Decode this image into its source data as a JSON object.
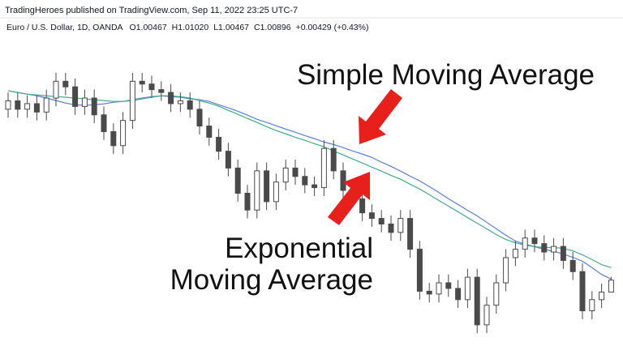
{
  "header": {
    "published": "TradingHeroes published on TradingView.com, Sep 11, 2022 23:25 UTC-7",
    "symbol": "Euro / U.S. Dollar, 1D, OANDA",
    "legend": [
      "O1.00467",
      "H1.01020",
      "L1.00467",
      "C1.00896",
      "+0.00429 (+0.43%)"
    ]
  },
  "annotations": [
    {
      "lines": [
        "Simple Moving Average"
      ]
    },
    {
      "lines": [
        "Exponential",
        "Moving Average"
      ]
    }
  ],
  "chart_data": {
    "type": "candlestick",
    "open": [
      1.07,
      1.073,
      1.07,
      1.072,
      1.069,
      1.074,
      1.08,
      1.078,
      1.071,
      1.074,
      1.068,
      1.062,
      1.057,
      1.066,
      1.08,
      1.079,
      1.077,
      1.076,
      1.072,
      1.073,
      1.07,
      1.064,
      1.06,
      1.055,
      1.049,
      1.04,
      1.034,
      1.048,
      1.037,
      1.044,
      1.049,
      1.046,
      1.043,
      1.042,
      1.056,
      1.048,
      1.041,
      1.038,
      1.033,
      1.031,
      1.029,
      1.026,
      1.031,
      1.02,
      1.005,
      1.004,
      1.008,
      1.006,
      1.002,
      1.01,
      0.993,
      1.0,
      1.008,
      1.017,
      1.02,
      1.024,
      1.022,
      1.019,
      1.021,
      1.016,
      1.012,
      0.998,
      1.002,
      1.00467
    ],
    "high": [
      1.076,
      1.076,
      1.075,
      1.075,
      1.077,
      1.083,
      1.083,
      1.081,
      1.077,
      1.077,
      1.071,
      1.065,
      1.069,
      1.083,
      1.083,
      1.082,
      1.08,
      1.079,
      1.076,
      1.076,
      1.073,
      1.067,
      1.063,
      1.058,
      1.052,
      1.043,
      1.051,
      1.051,
      1.047,
      1.052,
      1.052,
      1.049,
      1.046,
      1.059,
      1.059,
      1.051,
      1.044,
      1.041,
      1.036,
      1.034,
      1.032,
      1.034,
      1.034,
      1.023,
      1.008,
      1.011,
      1.011,
      1.009,
      1.013,
      1.013,
      1.003,
      1.011,
      1.02,
      1.023,
      1.027,
      1.027,
      1.025,
      1.024,
      1.024,
      1.019,
      1.015,
      1.005,
      1.0077,
      1.0102
    ],
    "low": [
      1.067,
      1.067,
      1.067,
      1.066,
      1.066,
      1.071,
      1.075,
      1.068,
      1.068,
      1.065,
      1.059,
      1.054,
      1.054,
      1.063,
      1.076,
      1.074,
      1.073,
      1.069,
      1.069,
      1.067,
      1.061,
      1.057,
      1.052,
      1.046,
      1.037,
      1.031,
      1.031,
      1.034,
      1.034,
      1.041,
      1.043,
      1.04,
      1.039,
      1.039,
      1.045,
      1.038,
      1.035,
      1.03,
      1.028,
      1.026,
      1.023,
      1.023,
      1.017,
      1.002,
      1.001,
      1.001,
      1.003,
      0.999,
      0.999,
      0.99,
      0.99,
      0.997,
      1.005,
      1.014,
      1.017,
      1.019,
      1.016,
      1.016,
      1.013,
      1.009,
      0.995,
      0.995,
      0.999,
      1.00467
    ],
    "close": [
      1.073,
      1.07,
      1.072,
      1.069,
      1.074,
      1.08,
      1.078,
      1.071,
      1.074,
      1.068,
      1.062,
      1.057,
      1.066,
      1.08,
      1.079,
      1.077,
      1.076,
      1.072,
      1.073,
      1.07,
      1.064,
      1.06,
      1.055,
      1.049,
      1.04,
      1.034,
      1.048,
      1.037,
      1.044,
      1.049,
      1.046,
      1.043,
      1.042,
      1.056,
      1.048,
      1.041,
      1.038,
      1.033,
      1.031,
      1.029,
      1.026,
      1.031,
      1.02,
      1.005,
      1.004,
      1.008,
      1.006,
      1.002,
      1.01,
      0.993,
      1.0,
      1.008,
      1.017,
      1.02,
      1.024,
      1.022,
      1.019,
      1.021,
      1.016,
      1.012,
      0.998,
      1.002,
      1.0047,
      1.00896
    ],
    "up_color": "#ffffff",
    "down_color": "#4a4a4a",
    "wick_color": "#4a4a4a",
    "overlays": [
      {
        "color": "#5b7fe6",
        "values": [
          1.0766,
          1.076,
          1.0754,
          1.0748,
          1.074,
          1.0731,
          1.0722,
          1.0716,
          1.0714,
          1.0716,
          1.0719,
          1.0725,
          1.0728,
          1.0734,
          1.074,
          1.0745,
          1.0748,
          1.0745,
          1.0743,
          1.0737,
          1.0734,
          1.0728,
          1.0716,
          1.0705,
          1.0693,
          1.0679,
          1.0664,
          1.0653,
          1.0641,
          1.0629,
          1.0618,
          1.0606,
          1.0595,
          1.0583,
          1.0574,
          1.0563,
          1.0551,
          1.054,
          1.0528,
          1.0511,
          1.0496,
          1.0479,
          1.0461,
          1.0444,
          1.0424,
          1.0403,
          1.038,
          1.036,
          1.0339,
          1.0319,
          1.0296,
          1.0273,
          1.025,
          1.0229,
          1.0218,
          1.0209,
          1.02,
          1.0192,
          1.0183,
          1.0171,
          1.0157,
          1.0134,
          1.011,
          1.0093
        ]
      },
      {
        "color": "#3fae8a",
        "values": [
          1.0766,
          1.076,
          1.0754,
          1.0751,
          1.0748,
          1.0745,
          1.0743,
          1.074,
          1.0737,
          1.0734,
          1.0731,
          1.0728,
          1.0728,
          1.0731,
          1.0737,
          1.0743,
          1.0748,
          1.0748,
          1.0745,
          1.074,
          1.0731,
          1.0722,
          1.0711,
          1.0696,
          1.0682,
          1.0667,
          1.0653,
          1.0638,
          1.0624,
          1.0612,
          1.06,
          1.0589,
          1.0577,
          1.0566,
          1.0551,
          1.0537,
          1.0522,
          1.0508,
          1.0493,
          1.0479,
          1.0464,
          1.045,
          1.0432,
          1.0415,
          1.0395,
          1.0374,
          1.0354,
          1.0334,
          1.0313,
          1.0293,
          1.0273,
          1.0252,
          1.0235,
          1.0223,
          1.0215,
          1.0209,
          1.0206,
          1.0206,
          1.0203,
          1.0194,
          1.018,
          1.0163,
          1.0145,
          1.0134
        ]
      }
    ],
    "ylim": [
      0.984,
      1.096
    ]
  }
}
